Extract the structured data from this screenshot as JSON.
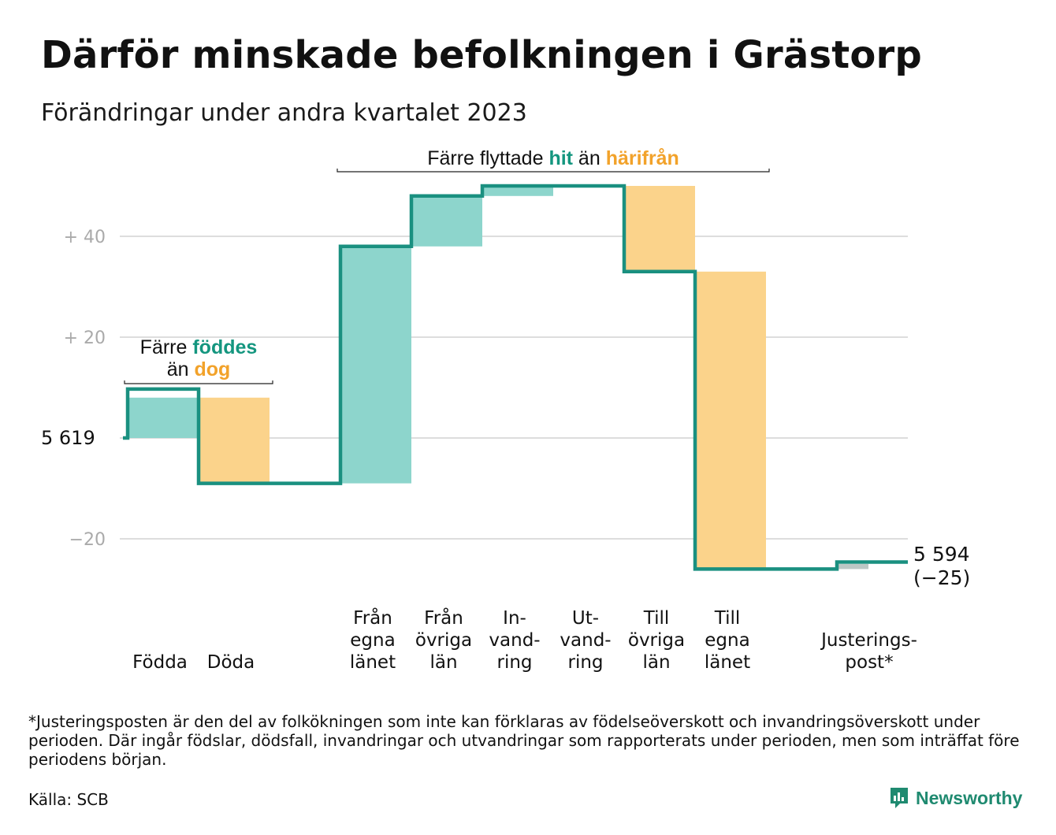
{
  "title": "Därför minskade befolkningen i Grästorp",
  "subtitle": "Förändringar under andra kvartalet 2023",
  "footnote": "*Justeringsposten är den del av folkökningen som inte kan förklaras av födelseöverskott och invandringsöverskott under perioden. Där ingår födslar, dödsfall, invandringar och utvandringar som rapporterats under perioden, men som inträffat före periodens början.",
  "source": "Källa: SCB",
  "brand": "Newsworthy",
  "chart_data": {
    "type": "waterfall",
    "start_label": "5  619",
    "start_value": 5619,
    "ylim": [
      -27,
      52
    ],
    "yticks": [
      {
        "value": 40,
        "label": "+  40"
      },
      {
        "value": 20,
        "label": "+  20"
      },
      {
        "value": -20,
        "label": "−20"
      }
    ],
    "steps": [
      {
        "label": [
          "Födda"
        ],
        "change": 8,
        "kind": "in",
        "line_start": 9.7
      },
      {
        "label": [
          "Döda"
        ],
        "change": -17,
        "kind": "out"
      },
      {
        "label": [],
        "change": 0,
        "kind": "none"
      },
      {
        "label": [
          "Från",
          "egna",
          "länet"
        ],
        "change": 47,
        "kind": "in"
      },
      {
        "label": [
          "Från",
          "övriga",
          "län"
        ],
        "change": 10,
        "kind": "in"
      },
      {
        "label": [
          "In-",
          "vand-",
          "ring"
        ],
        "change": 2,
        "kind": "in"
      },
      {
        "label": [
          "Ut-",
          "vand-",
          "ring"
        ],
        "change": 0,
        "kind": "none"
      },
      {
        "label": [
          "Till",
          "övriga",
          "län"
        ],
        "change": -17,
        "kind": "out"
      },
      {
        "label": [
          "Till",
          "egna",
          "länet"
        ],
        "change": -59,
        "kind": "out"
      },
      {
        "label": [],
        "change": 0,
        "kind": "none"
      },
      {
        "label": [
          "Justerings-",
          "post*"
        ],
        "change": 1,
        "kind": "adj",
        "line_end": 1.4
      }
    ],
    "end_label": [
      "5 594",
      "(−25)"
    ],
    "annotations": [
      {
        "parts": [
          {
            "text": "Färre ",
            "style": "plain"
          },
          {
            "text": "föddes",
            "style": "in"
          }
        ],
        "line2": [
          {
            "text": "än ",
            "style": "plain"
          },
          {
            "text": "dog",
            "style": "out"
          }
        ],
        "span": [
          0,
          1
        ]
      },
      {
        "parts": [
          {
            "text": "Färre flyttade ",
            "style": "plain"
          },
          {
            "text": "hit",
            "style": "in"
          },
          {
            "text": " än ",
            "style": "plain"
          },
          {
            "text": "härifrån",
            "style": "out"
          }
        ],
        "span": [
          3,
          8
        ]
      }
    ],
    "colors": {
      "line": "#1a9080",
      "in": "#8dd5cc",
      "out": "#fbd38b",
      "adj": "#bcc7c5",
      "grid": "#dddddd",
      "in_text": "#14967f",
      "out_text": "#f2a22a"
    }
  }
}
